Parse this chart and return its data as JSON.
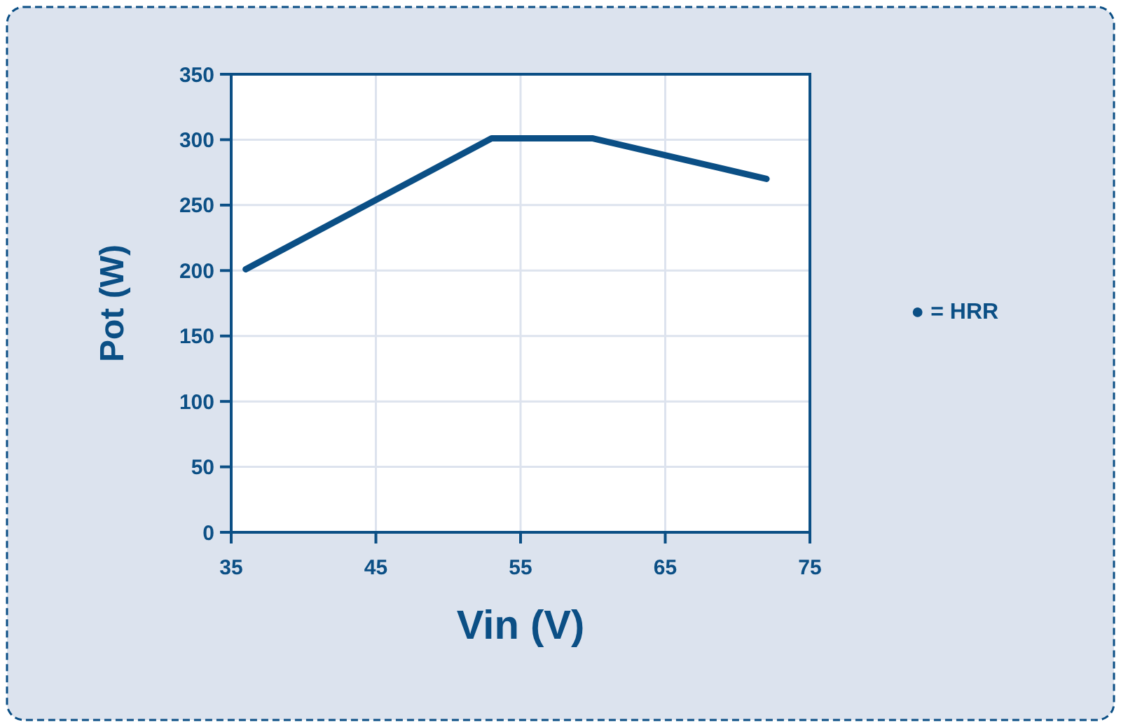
{
  "chart_data": {
    "type": "line",
    "xlabel": "Vin (V)",
    "ylabel": "Pot (W)",
    "x": [
      36,
      53,
      60,
      72
    ],
    "series": [
      {
        "color": "#0b4f85",
        "values": [
          201,
          301,
          301,
          270
        ]
      }
    ],
    "xlim": [
      35,
      75
    ],
    "xticks": [
      35,
      45,
      55,
      65,
      75
    ],
    "ylim": [
      0,
      350
    ],
    "yticks": [
      0,
      50,
      100,
      150,
      200,
      250,
      300,
      350
    ],
    "grid": true,
    "marker": "none",
    "line_style": "solid",
    "annotations": [
      "● = HRR"
    ]
  }
}
